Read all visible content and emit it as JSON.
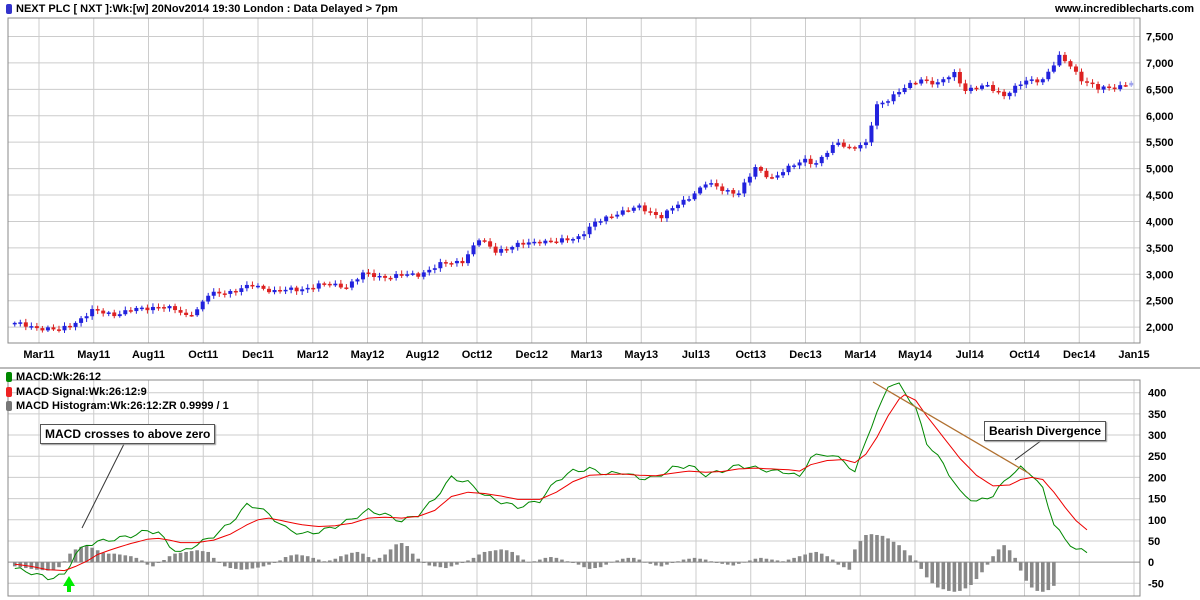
{
  "header": {
    "title": "NEXT PLC [ NXT ]:Wk:[w]  20Nov2014 19:30 London : Data Delayed > 7pm",
    "site": "www.incrediblecharts.com",
    "title_color": "#3333cc"
  },
  "colors": {
    "up": "#2222dd",
    "down": "#dd2222",
    "last": "#9fa3ee",
    "macd": "#008800",
    "signal": "#ee0000",
    "hist": "#888888",
    "grid": "#cccccc",
    "arrow": "#00ee00",
    "trendline": "#b07030"
  },
  "legend": [
    {
      "label": "MACD:Wk:26:12",
      "color": "#008800"
    },
    {
      "label": "MACD Signal:Wk:26:12:9",
      "color": "#ee2222"
    },
    {
      "label": "MACD Histogram:Wk:26:12:ZR 0.9999 / 1",
      "color": "#777777"
    }
  ],
  "annotations": {
    "cross": "MACD crosses to above zero",
    "divergence": "Bearish Divergence"
  },
  "chart_data": [
    {
      "type": "candlestick",
      "x_labels": [
        "Mar11",
        "May11",
        "Aug11",
        "Oct11",
        "Dec11",
        "Mar12",
        "May12",
        "Aug12",
        "Oct12",
        "Dec12",
        "Mar13",
        "May13",
        "Jul13",
        "Oct13",
        "Dec13",
        "Mar14",
        "May14",
        "Jul14",
        "Oct14",
        "Dec14",
        "Jan15"
      ],
      "y_ticks": [
        2000,
        2500,
        3000,
        3500,
        4000,
        4500,
        5000,
        5500,
        6000,
        6500,
        7000,
        7500
      ],
      "y_tick_labels": [
        "2,000",
        "2,500",
        "3,000",
        "3,500",
        "4,000",
        "4,500",
        "5,000",
        "5,500",
        "6,000",
        "6,500",
        "7,000",
        "7,500"
      ],
      "ylim": [
        1700,
        7850
      ],
      "grid": true,
      "close_points": [
        [
          0,
          2060
        ],
        [
          4,
          2000
        ],
        [
          8,
          1930
        ],
        [
          11,
          2100
        ],
        [
          14,
          2300
        ],
        [
          18,
          2250
        ],
        [
          22,
          2330
        ],
        [
          26,
          2400
        ],
        [
          29,
          2320
        ],
        [
          31,
          2220
        ],
        [
          33,
          2340
        ],
        [
          35,
          2600
        ],
        [
          39,
          2680
        ],
        [
          43,
          2780
        ],
        [
          47,
          2690
        ],
        [
          51,
          2700
        ],
        [
          55,
          2800
        ],
        [
          60,
          2780
        ],
        [
          63,
          3000
        ],
        [
          66,
          2960
        ],
        [
          70,
          2970
        ],
        [
          73,
          3000
        ],
        [
          77,
          3180
        ],
        [
          81,
          3260
        ],
        [
          84,
          3650
        ],
        [
          87,
          3450
        ],
        [
          90,
          3520
        ],
        [
          95,
          3640
        ],
        [
          98,
          3600
        ],
        [
          102,
          3720
        ],
        [
          105,
          3960
        ],
        [
          109,
          4170
        ],
        [
          113,
          4260
        ],
        [
          117,
          4100
        ],
        [
          121,
          4380
        ],
        [
          125,
          4720
        ],
        [
          128,
          4600
        ],
        [
          131,
          4550
        ],
        [
          134,
          5000
        ],
        [
          137,
          4830
        ],
        [
          140,
          5000
        ],
        [
          143,
          5180
        ],
        [
          145,
          5100
        ],
        [
          147,
          5300
        ],
        [
          149,
          5500
        ],
        [
          151,
          5400
        ],
        [
          154,
          5450
        ],
        [
          156,
          6200
        ],
        [
          160,
          6450
        ],
        [
          164,
          6700
        ],
        [
          167,
          6600
        ],
        [
          170,
          6800
        ],
        [
          172,
          6500
        ],
        [
          176,
          6550
        ],
        [
          179,
          6400
        ],
        [
          183,
          6650
        ],
        [
          186,
          6700
        ],
        [
          189,
          7100
        ],
        [
          191,
          6950
        ],
        [
          193,
          6700
        ],
        [
          196,
          6500
        ],
        [
          199,
          6550
        ],
        [
          202,
          6620
        ]
      ]
    },
    {
      "type": "line",
      "title": "MACD",
      "y_ticks": [
        -50,
        0,
        50,
        100,
        150,
        200,
        250,
        300,
        350,
        400
      ],
      "ylim": [
        -80,
        430
      ],
      "grid": true,
      "series": [
        {
          "name": "MACD:Wk:26:12",
          "points": [
            [
              0,
              -15
            ],
            [
              3,
              -25
            ],
            [
              6,
              -38
            ],
            [
              9,
              -30
            ],
            [
              11,
              20
            ],
            [
              13,
              40
            ],
            [
              15,
              48
            ],
            [
              18,
              54
            ],
            [
              21,
              62
            ],
            [
              24,
              74
            ],
            [
              26,
              70
            ],
            [
              28,
              38
            ],
            [
              30,
              22
            ],
            [
              33,
              42
            ],
            [
              36,
              62
            ],
            [
              39,
              92
            ],
            [
              42,
              135
            ],
            [
              44,
              130
            ],
            [
              46,
              112
            ],
            [
              49,
              80
            ],
            [
              52,
              66
            ],
            [
              55,
              72
            ],
            [
              58,
              84
            ],
            [
              61,
              102
            ],
            [
              64,
              122
            ],
            [
              67,
              112
            ],
            [
              70,
              97
            ],
            [
              73,
              112
            ],
            [
              76,
              150
            ],
            [
              79,
              200
            ],
            [
              82,
              188
            ],
            [
              85,
              158
            ],
            [
              88,
              142
            ],
            [
              91,
              130
            ],
            [
              95,
              145
            ],
            [
              98,
              192
            ],
            [
              101,
              215
            ],
            [
              104,
              220
            ],
            [
              107,
              208
            ],
            [
              110,
              212
            ],
            [
              113,
              198
            ],
            [
              116,
              200
            ],
            [
              119,
              222
            ],
            [
              122,
              228
            ],
            [
              125,
              206
            ],
            [
              128,
              215
            ],
            [
              131,
              228
            ],
            [
              134,
              222
            ],
            [
              137,
              215
            ],
            [
              140,
              212
            ],
            [
              142,
              200
            ],
            [
              144,
              248
            ],
            [
              147,
              255
            ],
            [
              150,
              240
            ],
            [
              152,
              210
            ],
            [
              154,
              290
            ],
            [
              156,
              350
            ],
            [
              158,
              418
            ],
            [
              160,
              418
            ],
            [
              161,
              403
            ],
            [
              163,
              362
            ],
            [
              165,
              282
            ],
            [
              168,
              232
            ],
            [
              171,
              165
            ],
            [
              174,
              142
            ],
            [
              177,
              158
            ],
            [
              180,
              205
            ],
            [
              182,
              222
            ],
            [
              184,
              208
            ],
            [
              186,
              172
            ],
            [
              188,
              92
            ],
            [
              190,
              52
            ],
            [
              192,
              32
            ],
            [
              194,
              22
            ]
          ]
        },
        {
          "name": "MACD Signal:Wk:26:12:9",
          "points": [
            [
              0,
              -5
            ],
            [
              3,
              -10
            ],
            [
              6,
              -18
            ],
            [
              9,
              -20
            ],
            [
              11,
              -10
            ],
            [
              13,
              2
            ],
            [
              15,
              18
            ],
            [
              18,
              32
            ],
            [
              21,
              44
            ],
            [
              24,
              54
            ],
            [
              26,
              56
            ],
            [
              28,
              52
            ],
            [
              30,
              46
            ],
            [
              33,
              46
            ],
            [
              36,
              52
            ],
            [
              39,
              66
            ],
            [
              42,
              88
            ],
            [
              44,
              100
            ],
            [
              46,
              104
            ],
            [
              49,
              96
            ],
            [
              52,
              88
            ],
            [
              55,
              84
            ],
            [
              58,
              86
            ],
            [
              61,
              92
            ],
            [
              64,
              104
            ],
            [
              67,
              106
            ],
            [
              70,
              104
            ],
            [
              73,
              108
            ],
            [
              76,
              122
            ],
            [
              79,
              155
            ],
            [
              82,
              165
            ],
            [
              85,
              162
            ],
            [
              88,
              156
            ],
            [
              91,
              148
            ],
            [
              95,
              148
            ],
            [
              98,
              165
            ],
            [
              101,
              190
            ],
            [
              104,
              205
            ],
            [
              107,
              207
            ],
            [
              110,
              208
            ],
            [
              113,
              205
            ],
            [
              116,
              204
            ],
            [
              119,
              210
            ],
            [
              122,
              215
            ],
            [
              125,
              212
            ],
            [
              128,
              214
            ],
            [
              131,
              220
            ],
            [
              134,
              222
            ],
            [
              137,
              220
            ],
            [
              140,
              218
            ],
            [
              142,
              215
            ],
            [
              144,
              230
            ],
            [
              147,
              240
            ],
            [
              150,
              242
            ],
            [
              152,
              235
            ],
            [
              154,
              255
            ],
            [
              156,
              295
            ],
            [
              158,
              345
            ],
            [
              160,
              385
            ],
            [
              161,
              395
            ],
            [
              163,
              382
            ],
            [
              165,
              345
            ],
            [
              168,
              295
            ],
            [
              171,
              245
            ],
            [
              174,
              205
            ],
            [
              177,
              180
            ],
            [
              180,
              182
            ],
            [
              182,
              195
            ],
            [
              184,
              200
            ],
            [
              186,
              195
            ],
            [
              188,
              165
            ],
            [
              190,
              130
            ],
            [
              192,
              98
            ],
            [
              194,
              76
            ]
          ]
        }
      ],
      "histogram": [
        -10,
        -12,
        -14,
        -16,
        -18,
        -19,
        -20,
        -18,
        -12,
        2,
        20,
        30,
        36,
        38,
        34,
        28,
        22,
        20,
        20,
        18,
        16,
        14,
        10,
        4,
        -6,
        -10,
        -2,
        5,
        14,
        20,
        22,
        24,
        26,
        28,
        26,
        24,
        10,
        -2,
        -10,
        -14,
        -16,
        -18,
        -17,
        -15,
        -13,
        -10,
        -6,
        -2,
        4,
        12,
        16,
        18,
        16,
        14,
        10,
        6,
        2,
        4,
        8,
        14,
        18,
        22,
        24,
        20,
        12,
        6,
        10,
        18,
        30,
        42,
        45,
        38,
        20,
        8,
        -2,
        -8,
        -10,
        -12,
        -14,
        -10,
        -6,
        -2,
        4,
        10,
        18,
        24,
        26,
        28,
        30,
        28,
        24,
        16,
        6,
        0,
        2,
        6,
        10,
        12,
        10,
        6,
        2,
        -2,
        -6,
        -12,
        -16,
        -14,
        -12,
        -6,
        0,
        4,
        8,
        10,
        10,
        6,
        0,
        -4,
        -8,
        -10,
        -6,
        -2,
        2,
        6,
        8,
        10,
        8,
        6,
        2,
        -2,
        -4,
        -6,
        -8,
        -4,
        0,
        4,
        8,
        10,
        8,
        6,
        4,
        2,
        6,
        10,
        14,
        18,
        22,
        24,
        20,
        14,
        6,
        -6,
        -12,
        -18,
        30,
        50,
        64,
        66,
        64,
        62,
        56,
        48,
        40,
        28,
        16,
        4,
        -16,
        -36,
        -50,
        -60,
        -64,
        -68,
        -70,
        -68,
        -62,
        -54,
        -40,
        -24,
        -6,
        14,
        30,
        40,
        28,
        10,
        -20,
        -44,
        -60,
        -68,
        -70,
        -66,
        -56
      ]
    }
  ]
}
